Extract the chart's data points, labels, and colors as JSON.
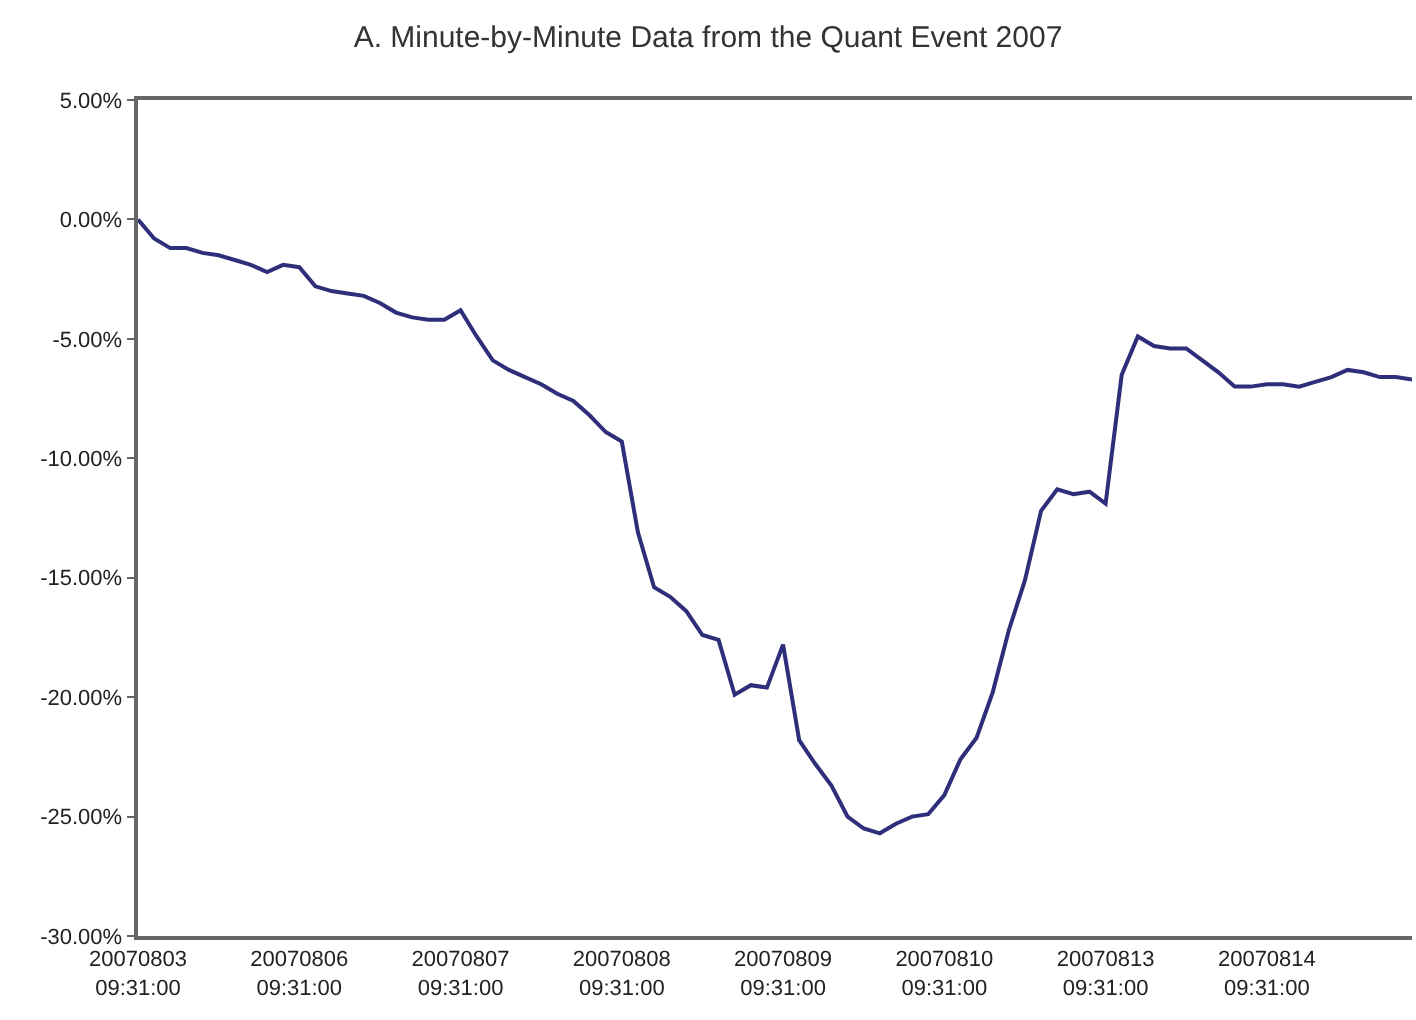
{
  "chart_data": {
    "type": "line",
    "title": "A. Minute-by-Minute Data from the Quant Event 2007",
    "categories": [
      "20070803\n09:31:00",
      null,
      null,
      null,
      null,
      null,
      null,
      null,
      null,
      null,
      "20070806\n09:31:00",
      null,
      null,
      null,
      null,
      null,
      null,
      null,
      null,
      null,
      "20070807\n09:31:00",
      null,
      null,
      null,
      null,
      null,
      null,
      null,
      null,
      null,
      "20070808\n09:31:00",
      null,
      null,
      null,
      null,
      null,
      null,
      null,
      null,
      null,
      "20070809\n09:31:00",
      null,
      null,
      null,
      null,
      null,
      null,
      null,
      null,
      null,
      "20070810\n09:31:00",
      null,
      null,
      null,
      null,
      null,
      null,
      null,
      null,
      null,
      "20070813\n09:31:00",
      null,
      null,
      null,
      null,
      null,
      null,
      null,
      null,
      null,
      "20070814\n09:31:00",
      null,
      null,
      null,
      null,
      null,
      null,
      null,
      null,
      null
    ],
    "ylim": [
      -30,
      5
    ],
    "yticks": [
      {
        "value": 5,
        "label": "5.00%"
      },
      {
        "value": 0,
        "label": "0.00%"
      },
      {
        "value": -5,
        "label": "-5.00%"
      },
      {
        "value": -10,
        "label": "-10.00%"
      },
      {
        "value": -15,
        "label": "-15.00%"
      },
      {
        "value": -20,
        "label": "-20.00%"
      },
      {
        "value": -25,
        "label": "-25.00%"
      },
      {
        "value": -30,
        "label": "-30.00%"
      }
    ],
    "marker": "none",
    "line_style": "solid",
    "series": [
      {
        "color": "#2e2e7a",
        "values": [
          0,
          -0.8,
          -1.2,
          -1.2,
          -1.4,
          -1.5,
          -1.7,
          -1.9,
          -2.2,
          -1.9,
          -2.0,
          -2.8,
          -3.0,
          -3.1,
          -3.2,
          -3.5,
          -3.9,
          -4.1,
          -4.2,
          -4.2,
          -3.8,
          -4.9,
          -5.9,
          -6.3,
          -6.6,
          -6.9,
          -7.3,
          -7.6,
          -8.2,
          -8.9,
          -9.3,
          -13.1,
          -15.4,
          -15.8,
          -16.4,
          -17.4,
          -17.6,
          -19.9,
          -19.5,
          -19.6,
          -17.8,
          -21.8,
          -22.8,
          -23.7,
          -25.0,
          -25.5,
          -25.7,
          -25.3,
          -25.0,
          -24.9,
          -24.1,
          -22.6,
          -21.7,
          -19.8,
          -17.2,
          -15.1,
          -12.2,
          -11.3,
          -11.5,
          -11.4,
          -11.9,
          -6.5,
          -4.9,
          -5.3,
          -5.4,
          -5.4,
          -5.9,
          -6.4,
          -7.0,
          -7.0,
          -6.9,
          -6.9,
          -7.0,
          -6.8,
          -6.6,
          -6.3,
          -6.4,
          -6.6,
          -6.6,
          -6.7
        ]
      }
    ]
  }
}
